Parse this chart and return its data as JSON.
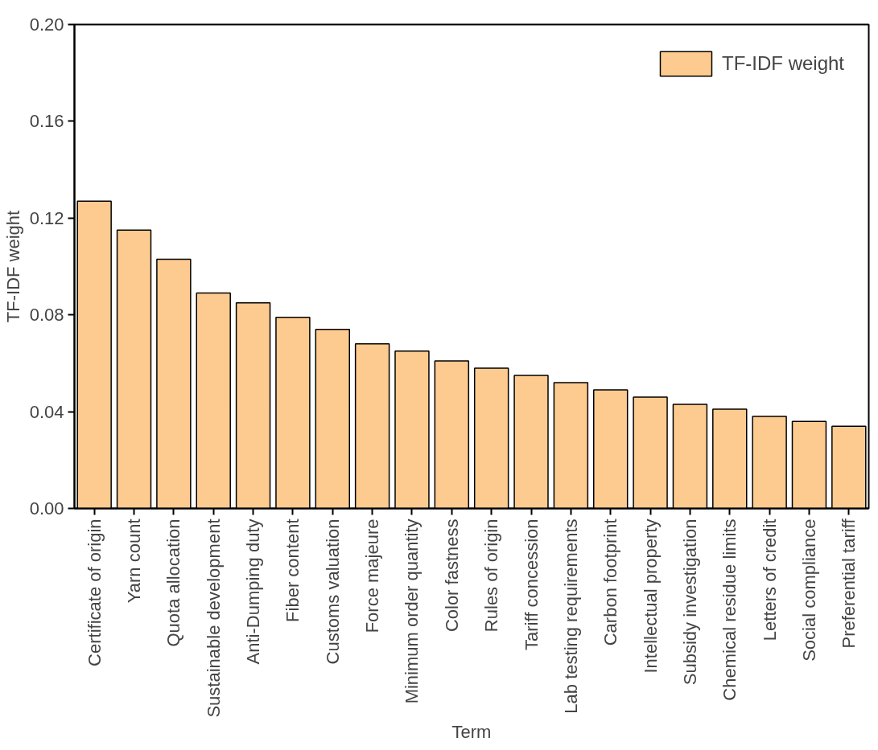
{
  "chart_data": {
    "type": "bar",
    "xlabel": "Term",
    "ylabel": "TF-IDF weight",
    "categories": [
      "Certificate of origin",
      "Yarn count",
      "Quota allocation",
      "Sustainable development",
      "Anti-Dumping duty",
      "Fiber content",
      "Customs valuation",
      "Force majeure",
      "Minimum order quantity",
      "Color fastness",
      "Rules of origin",
      "Tariff concession",
      "Lab testing requirements",
      "Carbon footprint",
      "Intellectual property",
      "Subsidy investigation",
      "Chemical residue limits",
      "Letters of credit",
      "Social compliance",
      "Preferential tariff"
    ],
    "series": [
      {
        "name": "TF-IDF weight",
        "color": "#fdcb8f",
        "values": [
          0.127,
          0.115,
          0.103,
          0.089,
          0.085,
          0.079,
          0.074,
          0.068,
          0.065,
          0.061,
          0.058,
          0.055,
          0.052,
          0.049,
          0.046,
          0.043,
          0.041,
          0.038,
          0.036,
          0.034
        ]
      }
    ],
    "ylim": [
      0,
      0.2
    ],
    "yticks": [
      {
        "value": 0,
        "label": "0.00"
      },
      {
        "value": 0.04,
        "label": "0.04"
      },
      {
        "value": 0.08,
        "label": "0.08"
      },
      {
        "value": 0.12,
        "label": "0.12"
      },
      {
        "value": 0.16,
        "label": "0.16"
      },
      {
        "value": 0.2,
        "label": "0.20"
      }
    ],
    "grid": false,
    "legend": "top right"
  }
}
